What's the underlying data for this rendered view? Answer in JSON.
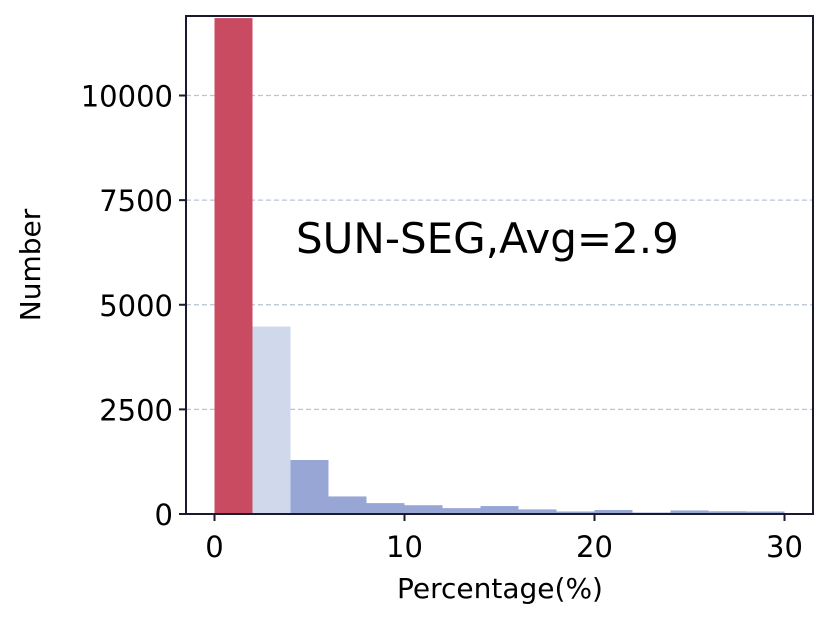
{
  "chart_data": {
    "type": "bar",
    "xlabel": "Percentage(%)",
    "ylabel": "Number",
    "annotation": "SUN-SEG,Avg=2.9",
    "xlim": [
      -1.5,
      31.5
    ],
    "ylim": [
      0,
      11900
    ],
    "x_ticks": [
      0,
      10,
      20,
      30
    ],
    "y_ticks": [
      0,
      2500,
      5000,
      7500,
      10000
    ],
    "grid": "horizontal dashed",
    "bin_width": 2,
    "bins": [
      {
        "start": 0,
        "end": 2,
        "value": 11850,
        "color": "#c84b62"
      },
      {
        "start": 2,
        "end": 4,
        "value": 4480,
        "color": "#d0d9ec"
      },
      {
        "start": 4,
        "end": 6,
        "value": 1290,
        "color": "#98a6d6"
      },
      {
        "start": 6,
        "end": 8,
        "value": 420,
        "color": "#98a6d6"
      },
      {
        "start": 8,
        "end": 10,
        "value": 260,
        "color": "#98a6d6"
      },
      {
        "start": 10,
        "end": 12,
        "value": 210,
        "color": "#98a6d6"
      },
      {
        "start": 12,
        "end": 14,
        "value": 140,
        "color": "#98a6d6"
      },
      {
        "start": 14,
        "end": 16,
        "value": 190,
        "color": "#98a6d6"
      },
      {
        "start": 16,
        "end": 18,
        "value": 110,
        "color": "#98a6d6"
      },
      {
        "start": 18,
        "end": 20,
        "value": 60,
        "color": "#98a6d6"
      },
      {
        "start": 20,
        "end": 22,
        "value": 95,
        "color": "#98a6d6"
      },
      {
        "start": 22,
        "end": 24,
        "value": 35,
        "color": "#98a6d6"
      },
      {
        "start": 24,
        "end": 26,
        "value": 85,
        "color": "#98a6d6"
      },
      {
        "start": 26,
        "end": 28,
        "value": 65,
        "color": "#98a6d6"
      },
      {
        "start": 28,
        "end": 30,
        "value": 60,
        "color": "#98a6d6"
      }
    ],
    "colors": {
      "grid": "#b8c4d9",
      "axis": "#1a1a2e"
    }
  }
}
